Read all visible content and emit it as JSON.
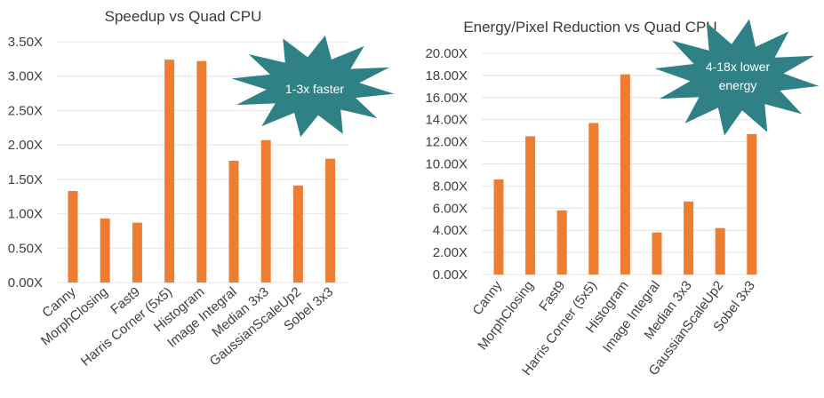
{
  "chart_data": [
    {
      "type": "bar",
      "title": "Speedup vs Quad CPU",
      "categories": [
        "Canny",
        "MorphClosing",
        "Fast9",
        "Harris Corner (5x5)",
        "Histogram",
        "Image Integral",
        "Median 3x3",
        "GaussianScaleUp2",
        "Sobel 3x3"
      ],
      "values": [
        1.33,
        0.93,
        0.87,
        3.24,
        3.22,
        1.77,
        2.07,
        1.41,
        1.8
      ],
      "ylim": [
        0,
        3.5
      ],
      "yticks": [
        "0.00X",
        "0.50X",
        "1.00X",
        "1.50X",
        "2.00X",
        "2.50X",
        "3.00X",
        "3.50X"
      ],
      "xlabel": "",
      "ylabel": "",
      "color": "#ed7d31",
      "annotation": "1-3x faster"
    },
    {
      "type": "bar",
      "title": "Energy/Pixel Reduction vs Quad CPU",
      "categories": [
        "Canny",
        "MorphClosing",
        "Fast9",
        "Harris Corner (5x5)",
        "Histogram",
        "Image Integral",
        "Median 3x3",
        "GaussianScaleUp2",
        "Sobel 3x3"
      ],
      "values": [
        8.6,
        12.5,
        5.8,
        13.7,
        18.1,
        3.8,
        6.6,
        4.2,
        12.7
      ],
      "ylim": [
        0,
        20
      ],
      "yticks": [
        "0.00X",
        "2.00X",
        "4.00X",
        "6.00X",
        "8.00X",
        "10.00X",
        "12.00X",
        "14.00X",
        "16.00X",
        "18.00X",
        "20.00X"
      ],
      "xlabel": "",
      "ylabel": "",
      "color": "#ed7d31",
      "annotation_lines": [
        "4-18x lower",
        "energy"
      ]
    }
  ],
  "badge_color": "#2f8185"
}
